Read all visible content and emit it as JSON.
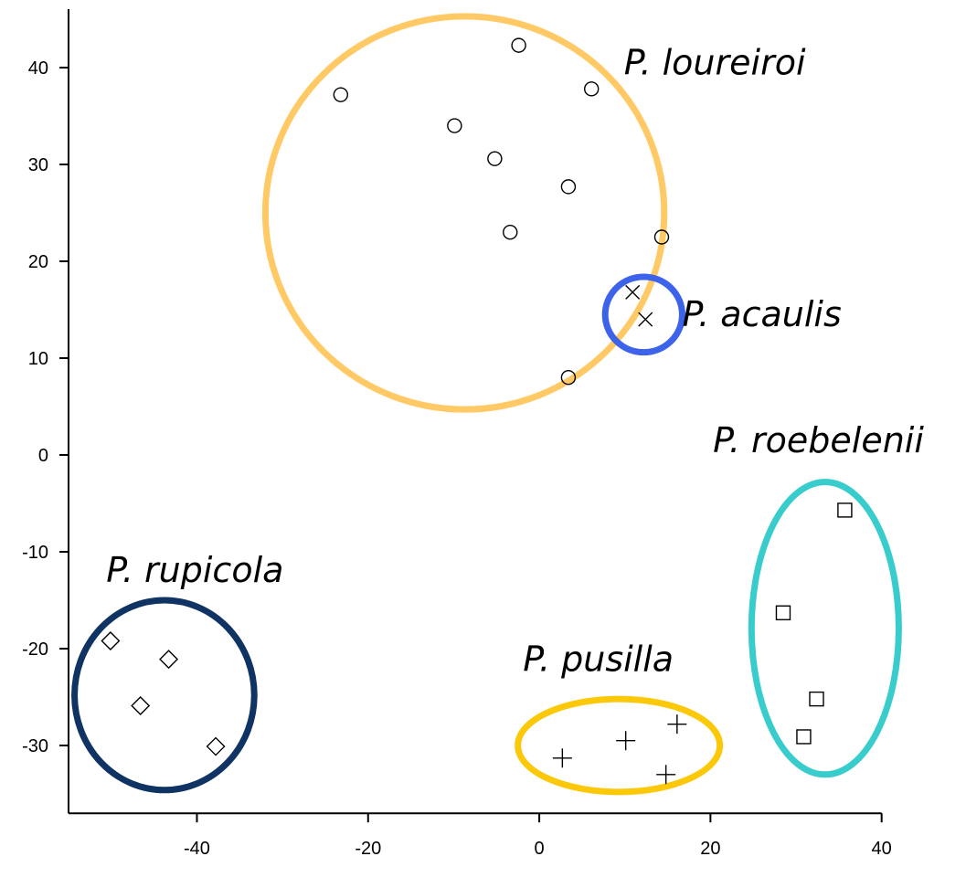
{
  "chart_data": {
    "type": "scatter",
    "title": "",
    "xlabel": "",
    "ylabel": "",
    "xlim": [
      -55,
      40
    ],
    "ylim": [
      -37,
      46
    ],
    "x_ticks": [
      -40,
      -20,
      0,
      20,
      40
    ],
    "y_ticks": [
      -30,
      -20,
      -10,
      0,
      10,
      20,
      30,
      40
    ],
    "x_tick_labels": [
      "-40",
      "-20",
      "0",
      "20",
      "40"
    ],
    "y_tick_labels": [
      "-30",
      "-20",
      "-10",
      "0",
      "10",
      "20",
      "30",
      "40"
    ],
    "grid": false,
    "series": [
      {
        "name": "P. loureiroi",
        "marker": "circle",
        "ellipse_color": "#FFC966",
        "ellipse": {
          "cx": -8.7,
          "cy": 25.0,
          "rx": 23.3,
          "ry": 20.3
        },
        "points": [
          {
            "x": -23.2,
            "y": 37.2
          },
          {
            "x": -2.4,
            "y": 42.3
          },
          {
            "x": -9.9,
            "y": 34.0
          },
          {
            "x": 6.1,
            "y": 37.8
          },
          {
            "x": -5.2,
            "y": 30.6
          },
          {
            "x": 3.4,
            "y": 27.7
          },
          {
            "x": -3.4,
            "y": 23.0
          },
          {
            "x": 14.3,
            "y": 22.5
          },
          {
            "x": 3.4,
            "y": 8.0
          }
        ]
      },
      {
        "name": "P. acaulis",
        "marker": "x",
        "ellipse_color": "#3D63EB",
        "ellipse": {
          "cx": 12.2,
          "cy": 14.5,
          "rx": 4.5,
          "ry": 3.9
        },
        "points": [
          {
            "x": 10.9,
            "y": 16.8
          },
          {
            "x": 12.4,
            "y": 14.0
          }
        ]
      },
      {
        "name": "P. roebelenii",
        "marker": "square",
        "ellipse_color": "#38CCCC",
        "ellipse": {
          "cx": 33.4,
          "cy": -17.9,
          "rx": 8.6,
          "ry": 15.1
        },
        "points": [
          {
            "x": 35.7,
            "y": -5.7
          },
          {
            "x": 28.5,
            "y": -16.3
          },
          {
            "x": 32.4,
            "y": -25.2
          },
          {
            "x": 30.9,
            "y": -29.1
          }
        ]
      },
      {
        "name": "P. rupicola",
        "marker": "diamond",
        "ellipse_color": "#0F3362",
        "ellipse": {
          "cx": -43.8,
          "cy": -24.8,
          "rx": 10.5,
          "ry": 9.8
        },
        "points": [
          {
            "x": -50.1,
            "y": -19.2
          },
          {
            "x": -43.3,
            "y": -21.1
          },
          {
            "x": -46.6,
            "y": -25.9
          },
          {
            "x": -37.8,
            "y": -30.1
          }
        ]
      },
      {
        "name": "P. pusilla",
        "marker": "plus",
        "ellipse_color": "#FCC80A",
        "ellipse": {
          "cx": 9.3,
          "cy": -30.0,
          "rx": 11.8,
          "ry": 4.8
        },
        "points": [
          {
            "x": 2.7,
            "y": -31.3
          },
          {
            "x": 10.1,
            "y": -29.5
          },
          {
            "x": 16.1,
            "y": -27.8
          },
          {
            "x": 14.8,
            "y": -33.0
          }
        ]
      }
    ],
    "annotations": [
      {
        "text": "P. loureiroi",
        "x": 9.9,
        "y": 39.3,
        "anchor": "start"
      },
      {
        "text": "P. acaulis",
        "x": 16.7,
        "y": 13.3,
        "anchor": "start"
      },
      {
        "text": "P. roebelenii",
        "x": 20.3,
        "y": 0.3,
        "anchor": "start"
      },
      {
        "text": "P. rupicola",
        "x": -50.6,
        "y": -13.1,
        "anchor": "start"
      },
      {
        "text": "P. pusilla",
        "x": -1.9,
        "y": -22.3,
        "anchor": "start"
      }
    ]
  }
}
